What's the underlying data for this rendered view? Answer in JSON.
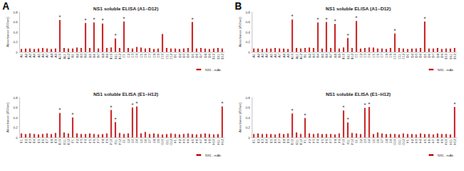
{
  "chart_data": [
    {
      "type": "bar",
      "panel": "A",
      "title": "NS1 soluble ELISA (A1~D12)",
      "y_label": "Absorbance (450nm)",
      "categories": [
        "A1",
        "A2",
        "A3",
        "A4",
        "A5",
        "A6",
        "A7",
        "A8",
        "A9",
        "A10",
        "A11",
        "A12",
        "B1",
        "B2",
        "B3",
        "B4",
        "B5",
        "B6",
        "B7",
        "B8",
        "B9",
        "B10",
        "B11",
        "B12",
        "C1",
        "C2",
        "C3",
        "C4",
        "C5",
        "C6",
        "C7",
        "C8",
        "C9",
        "C10",
        "C11",
        "C12",
        "D1",
        "D2",
        "D3",
        "D4",
        "D5",
        "D6",
        "D7",
        "D8",
        "D9",
        "D10",
        "D11",
        "D12"
      ],
      "series": [
        {
          "name": "NS1 - mAb",
          "color": "#c00000",
          "values": [
            0.06,
            0.07,
            0.07,
            0.06,
            0.07,
            0.08,
            0.07,
            0.06,
            0.07,
            0.64,
            0.08,
            0.07,
            0.07,
            0.09,
            0.08,
            0.58,
            0.08,
            0.59,
            0.07,
            0.57,
            0.08,
            0.09,
            0.27,
            0.08,
            0.61,
            0.08,
            0.07,
            0.1,
            0.09,
            0.07,
            0.08,
            0.06,
            0.07,
            0.36,
            0.08,
            0.07,
            0.07,
            0.06,
            0.07,
            0.08,
            0.6,
            0.07,
            0.08,
            0.07,
            0.06,
            0.07,
            0.08,
            0.07
          ]
        }
      ],
      "annotations": [
        {
          "category": "A10",
          "text": "*"
        },
        {
          "category": "B4",
          "text": "*"
        },
        {
          "category": "B6",
          "text": "*"
        },
        {
          "category": "B8",
          "text": "*"
        },
        {
          "category": "B11",
          "text": "*"
        },
        {
          "category": "C1",
          "text": "*"
        },
        {
          "category": "D5",
          "text": "*"
        }
      ],
      "ylim": [
        0,
        0.8
      ],
      "yticks": [
        0,
        0.2,
        0.4,
        0.6,
        0.8
      ],
      "grid": false,
      "legend": "bottom-right"
    },
    {
      "type": "bar",
      "title": "NS1 soluble ELISA (E1~H12)",
      "y_label": "Absorbance (450nm)",
      "categories": [
        "E1",
        "E2",
        "E3",
        "E4",
        "E5",
        "E6",
        "E7",
        "E8",
        "E9",
        "E10",
        "E11",
        "E12",
        "F1",
        "F2",
        "F3",
        "F4",
        "F5",
        "F6",
        "F7",
        "F8",
        "F9",
        "F10",
        "F11",
        "F12",
        "G1",
        "G2",
        "G3",
        "G4",
        "G5",
        "G6",
        "G7",
        "G8",
        "G9",
        "G10",
        "G11",
        "G12",
        "H1",
        "H2",
        "H3",
        "H4",
        "H5",
        "H6",
        "H7",
        "H8",
        "H9",
        "H10",
        "H11",
        "H12"
      ],
      "series": [
        {
          "name": "NS1 - mAb",
          "color": "#c00000",
          "values": [
            0.08,
            0.07,
            0.08,
            0.07,
            0.06,
            0.07,
            0.08,
            0.07,
            0.09,
            0.49,
            0.1,
            0.08,
            0.4,
            0.08,
            0.07,
            0.07,
            0.08,
            0.07,
            0.06,
            0.07,
            0.08,
            0.55,
            0.31,
            0.09,
            0.07,
            0.08,
            0.6,
            0.62,
            0.08,
            0.11,
            0.07,
            0.08,
            0.07,
            0.06,
            0.07,
            0.08,
            0.07,
            0.06,
            0.07,
            0.08,
            0.07,
            0.06,
            0.07,
            0.08,
            0.07,
            0.06,
            0.07,
            0.62
          ]
        }
      ],
      "annotations": [
        {
          "category": "E10",
          "text": "*"
        },
        {
          "category": "F1",
          "text": "*"
        },
        {
          "category": "F10",
          "text": "*"
        },
        {
          "category": "F11",
          "text": "*"
        },
        {
          "category": "G3",
          "text": "*"
        },
        {
          "category": "G4",
          "text": "*"
        },
        {
          "category": "H12",
          "text": "*"
        }
      ],
      "ylim": [
        0,
        0.8
      ],
      "yticks": [
        0,
        0.2,
        0.4,
        0.6,
        0.8
      ],
      "grid": false,
      "legend": "bottom-right"
    },
    {
      "type": "bar",
      "panel": "B",
      "title": "NS1 soluble ELISA (A1~D12)",
      "y_label": "Absorbance (450nm)",
      "categories": [
        "A1",
        "A2",
        "A3",
        "A4",
        "A5",
        "A6",
        "A7",
        "A8",
        "A9",
        "A10",
        "A11",
        "A12",
        "B1",
        "B2",
        "B3",
        "B4",
        "B5",
        "B6",
        "B7",
        "B8",
        "B9",
        "B10",
        "B11",
        "B12",
        "C1",
        "C2",
        "C3",
        "C4",
        "C5",
        "C6",
        "C7",
        "C8",
        "C9",
        "C10",
        "C11",
        "C12",
        "D1",
        "D2",
        "D3",
        "D4",
        "D5",
        "D6",
        "D7",
        "D8",
        "D9",
        "D10",
        "D11",
        "D12"
      ],
      "series": [
        {
          "name": "NS1 - mAb",
          "color": "#c00000",
          "values": [
            0.07,
            0.07,
            0.06,
            0.07,
            0.07,
            0.08,
            0.07,
            0.07,
            0.06,
            0.65,
            0.08,
            0.07,
            0.08,
            0.09,
            0.08,
            0.59,
            0.07,
            0.6,
            0.08,
            0.56,
            0.07,
            0.09,
            0.28,
            0.08,
            0.62,
            0.07,
            0.08,
            0.09,
            0.09,
            0.07,
            0.07,
            0.06,
            0.08,
            0.37,
            0.08,
            0.07,
            0.06,
            0.07,
            0.07,
            0.08,
            0.61,
            0.07,
            0.07,
            0.08,
            0.06,
            0.07,
            0.07,
            0.08
          ]
        }
      ],
      "annotations": [
        {
          "category": "A10",
          "text": "*"
        },
        {
          "category": "B4",
          "text": "*"
        },
        {
          "category": "B6",
          "text": "*"
        },
        {
          "category": "B8",
          "text": "*"
        },
        {
          "category": "B11",
          "text": "*"
        },
        {
          "category": "C1",
          "text": "*"
        },
        {
          "category": "C10",
          "text": "*"
        },
        {
          "category": "D5",
          "text": "*"
        }
      ],
      "ylim": [
        0,
        0.8
      ],
      "yticks": [
        0,
        0.2,
        0.4,
        0.6,
        0.8
      ],
      "grid": false,
      "legend": "bottom-right"
    },
    {
      "type": "bar",
      "title": "NS1 soluble ELISA (E1~H12)",
      "y_label": "Absorbance (450nm)",
      "categories": [
        "E1",
        "E2",
        "E3",
        "E4",
        "E5",
        "E6",
        "E7",
        "E8",
        "E9",
        "E10",
        "E11",
        "E12",
        "F1",
        "F2",
        "F3",
        "F4",
        "F5",
        "F6",
        "F7",
        "F8",
        "F9",
        "F10",
        "F11",
        "F12",
        "G1",
        "G2",
        "G3",
        "G4",
        "G5",
        "G6",
        "G7",
        "G8",
        "G9",
        "G10",
        "G11",
        "G12",
        "H1",
        "H2",
        "H3",
        "H4",
        "H5",
        "H6",
        "H7",
        "H8",
        "H9",
        "H10",
        "H11",
        "H12"
      ],
      "series": [
        {
          "name": "NS1 - mAb",
          "color": "#c00000",
          "values": [
            0.07,
            0.08,
            0.07,
            0.07,
            0.07,
            0.06,
            0.08,
            0.07,
            0.08,
            0.48,
            0.1,
            0.07,
            0.39,
            0.08,
            0.07,
            0.08,
            0.07,
            0.07,
            0.07,
            0.06,
            0.08,
            0.54,
            0.3,
            0.09,
            0.08,
            0.07,
            0.59,
            0.61,
            0.07,
            0.1,
            0.08,
            0.07,
            0.07,
            0.07,
            0.06,
            0.08,
            0.07,
            0.07,
            0.06,
            0.08,
            0.07,
            0.07,
            0.06,
            0.08,
            0.07,
            0.07,
            0.06,
            0.61
          ]
        }
      ],
      "annotations": [
        {
          "category": "E10",
          "text": "*"
        },
        {
          "category": "F1",
          "text": "*"
        },
        {
          "category": "F10",
          "text": "*"
        },
        {
          "category": "F11",
          "text": "*"
        },
        {
          "category": "G3",
          "text": "*"
        },
        {
          "category": "G4",
          "text": "*"
        },
        {
          "category": "H12",
          "text": "*"
        }
      ],
      "ylim": [
        0,
        0.8
      ],
      "yticks": [
        0,
        0.2,
        0.4,
        0.6,
        0.8
      ],
      "grid": false,
      "legend": "bottom-right"
    }
  ]
}
